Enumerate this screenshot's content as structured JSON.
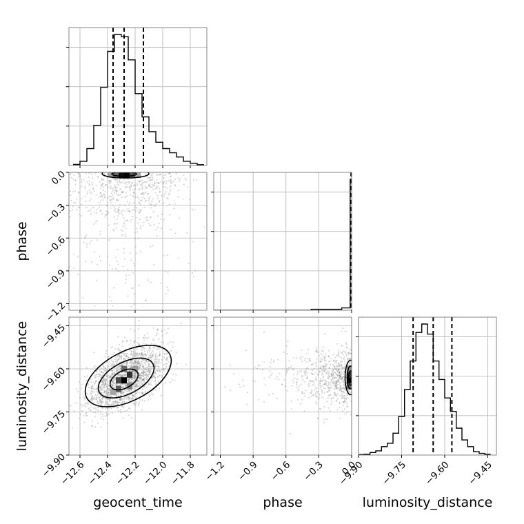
{
  "chart_data": {
    "type": "corner",
    "grid": true,
    "parameters": [
      {
        "name": "geocent_time",
        "range": [
          -12.68,
          -11.68
        ],
        "ticks": [
          -12.6,
          -12.4,
          -12.2,
          -12.0,
          -11.8
        ],
        "tick_labels": [
          "−12.6",
          "−12.4",
          "−12.2",
          "−12.0",
          "−11.8"
        ]
      },
      {
        "name": "phase",
        "range": [
          -1.26,
          0.0
        ],
        "ticks": [
          -1.2,
          -0.9,
          -0.6,
          -0.3,
          0.0
        ],
        "tick_labels": [
          "−1.2",
          "−0.9",
          "−0.6",
          "−0.3",
          "0.0"
        ]
      },
      {
        "name": "luminosity_distance",
        "range": [
          -9.9,
          -9.42
        ],
        "ticks": [
          -9.9,
          -9.75,
          -9.6,
          -9.45
        ],
        "tick_labels": [
          "−9.90",
          "−9.75",
          "−9.60",
          "−9.45"
        ]
      }
    ],
    "histograms": [
      {
        "parameter": "geocent_time",
        "bin_edges": [
          -12.65,
          -12.6,
          -12.55,
          -12.5,
          -12.45,
          -12.4,
          -12.35,
          -12.3,
          -12.25,
          -12.2,
          -12.15,
          -12.1,
          -12.05,
          -12.0,
          -11.95,
          -11.9,
          -11.85,
          -11.8,
          -11.75,
          -11.7
        ],
        "counts": [
          0.5,
          2,
          8,
          19,
          37,
          54,
          62,
          61,
          50,
          34,
          23,
          16,
          11,
          8,
          6,
          4,
          2,
          1,
          0.4
        ],
        "quantiles": [
          -12.36,
          -12.28,
          -12.14
        ]
      },
      {
        "parameter": "phase",
        "bin_edges": [
          -1.26,
          -0.37,
          -0.09,
          -0.013,
          0.0
        ],
        "counts": [
          0,
          0.6,
          1.5,
          84
        ],
        "quantiles": [
          -0.005,
          -0.002,
          0.0
        ]
      },
      {
        "parameter": "luminosity_distance",
        "bin_edges": [
          -9.9,
          -9.88,
          -9.86,
          -9.84,
          -9.82,
          -9.8,
          -9.78,
          -9.76,
          -9.74,
          -9.72,
          -9.7,
          -9.68,
          -9.66,
          -9.64,
          -9.62,
          -9.6,
          -9.58,
          -9.56,
          -9.54,
          -9.52,
          -9.5,
          -9.48,
          -9.46,
          -9.44
        ],
        "counts": [
          0.3,
          0.5,
          1.5,
          2.5,
          5,
          7,
          13,
          23,
          39,
          56,
          73,
          78,
          72,
          56,
          45,
          34,
          26,
          16,
          9,
          5,
          2,
          1,
          0.4
        ],
        "quantiles": [
          -9.71,
          -9.64,
          -9.575
        ]
      }
    ],
    "joint_panels": [
      {
        "x": "geocent_time",
        "y": "phase",
        "center": [
          -12.28,
          -0.01
        ],
        "density_cells": [
          [
            -12.34,
            -0.02,
            0.55
          ],
          [
            -12.3,
            -0.02,
            0.95
          ],
          [
            -12.26,
            -0.02,
            1.0
          ],
          [
            -12.22,
            -0.02,
            0.65
          ],
          [
            -12.38,
            -0.02,
            0.3
          ],
          [
            -12.18,
            -0.02,
            0.3
          ]
        ],
        "contour_ellipses": [
          [
            -12.27,
            -0.012,
            0.17,
            0.04
          ],
          [
            -12.28,
            -0.015,
            0.09,
            0.02
          ]
        ],
        "scatter_spread": [
          0.22,
          0.4
        ]
      },
      {
        "x": "geocent_time",
        "y": "luminosity_distance",
        "center": [
          -12.27,
          -9.63
        ],
        "density_cells": [
          [
            -12.28,
            -9.64,
            1.0
          ],
          [
            -12.32,
            -9.64,
            0.7
          ],
          [
            -12.24,
            -9.62,
            0.8
          ],
          [
            -12.28,
            -9.6,
            0.55
          ],
          [
            -12.32,
            -9.67,
            0.6
          ],
          [
            -12.24,
            -9.66,
            0.45
          ],
          [
            -12.2,
            -9.6,
            0.35
          ],
          [
            -12.36,
            -9.68,
            0.3
          ]
        ],
        "contour_ellipses": [
          [
            -12.25,
            -9.625,
            0.34,
            0.085,
            0.33
          ],
          [
            -12.265,
            -9.632,
            0.22,
            0.055,
            0.33
          ],
          [
            -12.28,
            -9.637,
            0.11,
            0.03,
            0.33
          ]
        ],
        "scatter_spread": [
          0.14,
          0.06
        ]
      },
      {
        "x": "phase",
        "y": "luminosity_distance",
        "center": [
          -0.01,
          -9.63
        ],
        "density_cells": [
          [
            -0.02,
            -9.64,
            1.0
          ],
          [
            -0.02,
            -9.62,
            0.8
          ],
          [
            -0.02,
            -9.66,
            0.55
          ],
          [
            -0.02,
            -9.6,
            0.4
          ]
        ],
        "contour_ellipses": [
          [
            -0.01,
            -9.63,
            0.05,
            0.06
          ],
          [
            -0.01,
            -9.63,
            0.03,
            0.04
          ],
          [
            -0.01,
            -9.632,
            0.018,
            0.025
          ]
        ],
        "scatter_spread": [
          0.4,
          0.05
        ]
      }
    ]
  }
}
